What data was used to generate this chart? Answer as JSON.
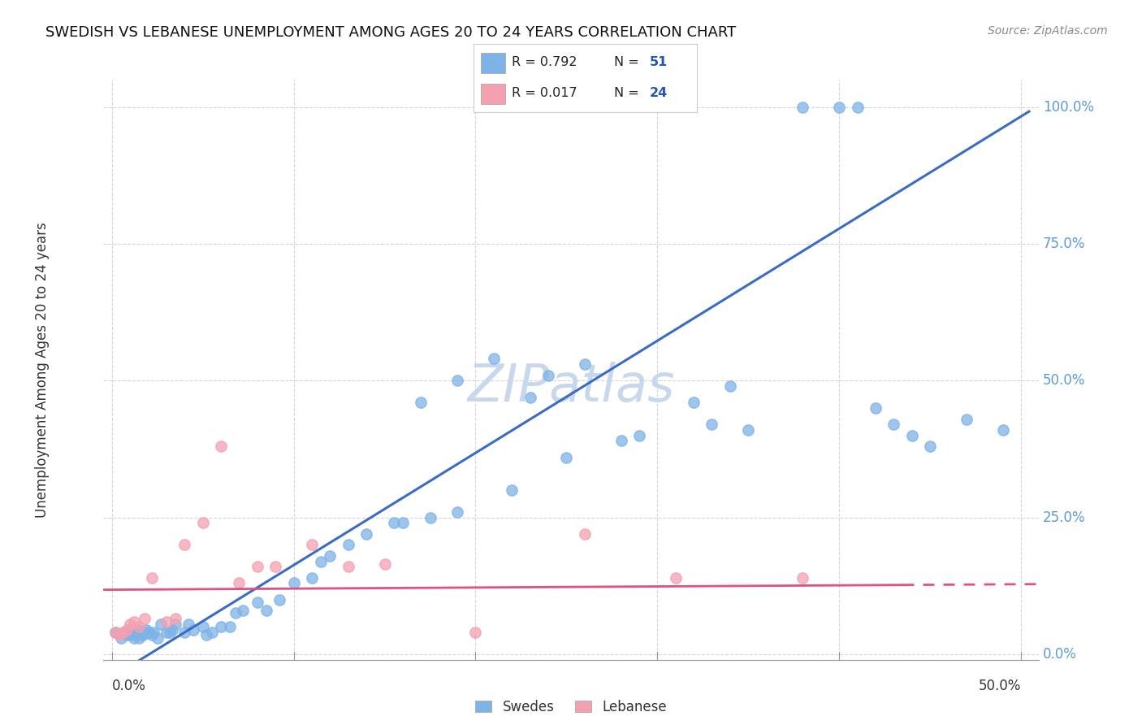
{
  "title": "SWEDISH VS LEBANESE UNEMPLOYMENT AMONG AGES 20 TO 24 YEARS CORRELATION CHART",
  "source": "Source: ZipAtlas.com",
  "ylabel": "Unemployment Among Ages 20 to 24 years",
  "xrange": [
    0.0,
    0.5
  ],
  "yrange": [
    0.0,
    1.05
  ],
  "swedes_R": 0.792,
  "swedes_N": 51,
  "lebanese_R": 0.017,
  "lebanese_N": 24,
  "swede_color": "#7EB3E8",
  "lebanese_color": "#F4A0B0",
  "line_blue": "#3B6CC4",
  "line_pink_solid": "#E05080",
  "line_pink_dashed": "#E05080",
  "swedes_x": [
    0.002,
    0.005,
    0.007,
    0.008,
    0.01,
    0.01,
    0.012,
    0.013,
    0.015,
    0.015,
    0.015,
    0.016,
    0.017,
    0.018,
    0.019,
    0.02,
    0.022,
    0.023,
    0.025,
    0.027,
    0.03,
    0.032,
    0.033,
    0.035,
    0.04,
    0.042,
    0.045,
    0.05,
    0.052,
    0.055,
    0.06,
    0.065,
    0.068,
    0.072,
    0.08,
    0.085,
    0.092,
    0.1,
    0.11,
    0.115,
    0.12,
    0.13,
    0.14,
    0.155,
    0.16,
    0.175,
    0.19,
    0.22,
    0.25,
    0.28,
    0.33
  ],
  "swedes_y": [
    0.04,
    0.03,
    0.04,
    0.035,
    0.035,
    0.045,
    0.03,
    0.035,
    0.03,
    0.04,
    0.045,
    0.035,
    0.035,
    0.04,
    0.045,
    0.04,
    0.035,
    0.04,
    0.03,
    0.055,
    0.04,
    0.04,
    0.045,
    0.055,
    0.04,
    0.055,
    0.045,
    0.05,
    0.035,
    0.04,
    0.05,
    0.05,
    0.075,
    0.08,
    0.095,
    0.08,
    0.1,
    0.13,
    0.14,
    0.17,
    0.18,
    0.2,
    0.22,
    0.24,
    0.24,
    0.25,
    0.26,
    0.3,
    0.36,
    0.39,
    0.42
  ],
  "swedes_x2": [
    0.17,
    0.19,
    0.21,
    0.23,
    0.24,
    0.26,
    0.29,
    0.32,
    0.34,
    0.35,
    0.38,
    0.4,
    0.41,
    0.42,
    0.43,
    0.44,
    0.45,
    0.47,
    0.49
  ],
  "swedes_y2": [
    0.46,
    0.5,
    0.54,
    0.47,
    0.51,
    0.53,
    0.4,
    0.46,
    0.49,
    0.41,
    1.0,
    1.0,
    1.0,
    0.45,
    0.42,
    0.4,
    0.38,
    0.43,
    0.41
  ],
  "lebanese_x": [
    0.002,
    0.004,
    0.006,
    0.008,
    0.01,
    0.012,
    0.015,
    0.018,
    0.022,
    0.03,
    0.035,
    0.04,
    0.05,
    0.06,
    0.07,
    0.08,
    0.09,
    0.11,
    0.13,
    0.15,
    0.2,
    0.26,
    0.31,
    0.38
  ],
  "lebanese_y": [
    0.04,
    0.035,
    0.04,
    0.045,
    0.055,
    0.06,
    0.05,
    0.065,
    0.14,
    0.06,
    0.065,
    0.2,
    0.24,
    0.38,
    0.13,
    0.16,
    0.16,
    0.2,
    0.16,
    0.165,
    0.04,
    0.22,
    0.14,
    0.14
  ],
  "background_color": "#FFFFFF",
  "grid_color": "#CCCCCC",
  "grid_linestyle": "--",
  "ytick_positions": [
    0.0,
    0.25,
    0.5,
    0.75,
    1.0
  ],
  "ytick_labels": [
    "0.0%",
    "25.0%",
    "50.0%",
    "75.0%",
    "100.0%"
  ],
  "xtick_labels_show": [
    "0.0%",
    "50.0%"
  ],
  "watermark_text": "ZIPatlas",
  "legend_bottom_labels": [
    "Swedes",
    "Lebanese"
  ]
}
